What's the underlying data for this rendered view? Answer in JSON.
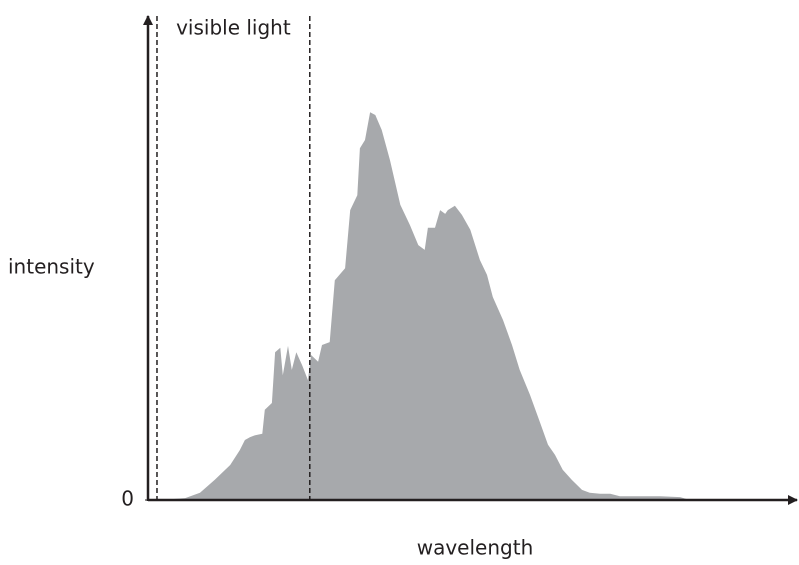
{
  "chart_data": {
    "type": "area",
    "x_label": "wavelength",
    "y_label": "intensity",
    "x": [
      1.9,
      5.8,
      8.1,
      10.4,
      12.8,
      14.3,
      15.1,
      15.9,
      16.7,
      17.8,
      18.2,
      19.3,
      19.8,
      20.6,
      21.0,
      21.8,
      22.4,
      23.1,
      24.0,
      24.9,
      25.4,
      26.5,
      27.1,
      28.3,
      29.1,
      30.7,
      31.5,
      32.6,
      33.0,
      33.8,
      34.6,
      35.4,
      36.4,
      37.7,
      39.3,
      40.8,
      42.1,
      43.1,
      43.6,
      44.7,
      45.5,
      46.3,
      46.7,
      47.8,
      48.9,
      50.2,
      51.7,
      52.8,
      53.7,
      55.3,
      56.7,
      57.9,
      59.5,
      61.1,
      62.3,
      63.4,
      64.6,
      66.0,
      67.6,
      68.8,
      70.4,
      72.0,
      73.5,
      75.1,
      79.8,
      82.9,
      84.4
    ],
    "series": [
      {
        "color": "#a7a9ac",
        "values": [
          0,
          0.4,
          1.5,
          4.2,
          7.3,
          10.4,
          12.5,
          13.1,
          13.5,
          13.8,
          18.8,
          20.2,
          30.8,
          31.7,
          26.0,
          32.1,
          27.1,
          30.8,
          28.1,
          25.0,
          30.2,
          28.8,
          32.3,
          32.9,
          45.8,
          48.3,
          60.4,
          63.5,
          73.3,
          75.0,
          80.8,
          80.2,
          77.1,
          70.8,
          61.5,
          57.3,
          53.1,
          52.1,
          56.7,
          56.7,
          60.4,
          59.6,
          60.4,
          61.3,
          59.4,
          56.3,
          50.0,
          46.9,
          42.3,
          37.5,
          32.3,
          27.1,
          21.9,
          16.0,
          11.5,
          9.4,
          6.3,
          4.2,
          2.1,
          1.5,
          1.3,
          1.3,
          0.8,
          0.8,
          0.8,
          0.6,
          0
        ]
      }
    ],
    "xlim": [
      0,
      100
    ],
    "ylim": [
      0,
      100
    ],
    "yticks": [
      0
    ],
    "annotations": [
      {
        "label": "visible light",
        "x": [
          1.4,
          25.2
        ]
      }
    ]
  }
}
